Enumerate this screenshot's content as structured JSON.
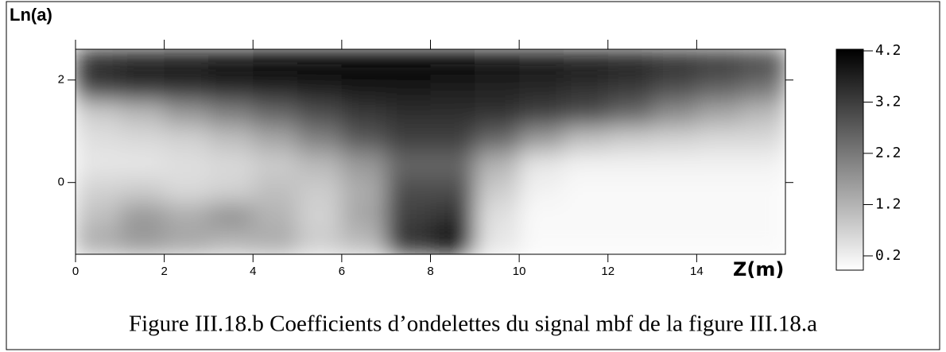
{
  "chart_data": {
    "type": "heatmap",
    "xlabel": "Z(m)",
    "ylabel": "Ln(a)",
    "caption": "Figure III.18.b Coefficients d’ondelettes du signal mbf de la figure III.18.a",
    "xlim": [
      0,
      16
    ],
    "ylim": [
      -1.4,
      2.6
    ],
    "xticks": [
      0,
      2,
      4,
      6,
      8,
      10,
      12,
      14
    ],
    "yticks": [
      0,
      2
    ],
    "zlim": [
      0.2,
      4.2
    ],
    "zticks": [
      0.2,
      1.2,
      2.2,
      3.2,
      4.2
    ],
    "z": [
      [
        3.6,
        3.8,
        3.9,
        4.0,
        4.1,
        4.1,
        4.2,
        4.2,
        4.1,
        4.0,
        3.9,
        3.8,
        3.7,
        3.5,
        3.3,
        3.1
      ],
      [
        3.2,
        3.4,
        3.5,
        3.6,
        3.7,
        3.8,
        3.9,
        3.9,
        3.8,
        3.7,
        3.6,
        3.5,
        3.3,
        3.0,
        2.7,
        2.4
      ],
      [
        1.0,
        1.3,
        1.8,
        2.2,
        2.6,
        3.0,
        3.3,
        3.5,
        3.5,
        3.4,
        3.2,
        3.0,
        2.6,
        2.0,
        1.6,
        1.3
      ],
      [
        0.7,
        0.8,
        0.9,
        1.2,
        1.6,
        2.2,
        2.8,
        3.2,
        3.2,
        2.6,
        1.8,
        1.2,
        1.0,
        0.9,
        0.8,
        0.8
      ],
      [
        0.6,
        0.6,
        0.7,
        0.8,
        1.0,
        1.3,
        1.8,
        2.6,
        2.6,
        1.4,
        0.6,
        0.4,
        0.4,
        0.4,
        0.4,
        0.4
      ],
      [
        0.9,
        1.0,
        0.8,
        0.9,
        1.2,
        1.0,
        1.5,
        3.0,
        3.0,
        1.0,
        0.4,
        0.3,
        0.3,
        0.3,
        0.3,
        0.3
      ],
      [
        1.2,
        1.8,
        1.5,
        1.9,
        1.4,
        0.9,
        1.6,
        3.2,
        3.4,
        0.7,
        0.3,
        0.3,
        0.3,
        0.3,
        0.3,
        0.3
      ],
      [
        1.5,
        1.8,
        1.6,
        1.4,
        1.5,
        1.0,
        1.3,
        3.4,
        4.0,
        0.6,
        0.3,
        0.3,
        0.3,
        0.3,
        0.3,
        0.3
      ]
    ]
  }
}
